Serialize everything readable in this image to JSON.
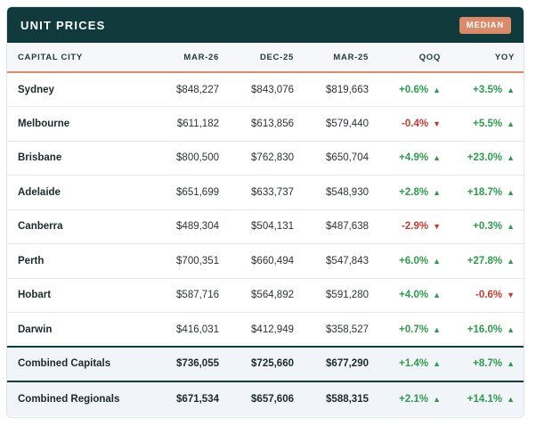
{
  "header": {
    "title": "UNIT PRICES",
    "badge": "MEDIAN"
  },
  "columns": [
    "CAPITAL CITY",
    "MAR-26",
    "DEC-25",
    "MAR-25",
    "QOQ",
    "YOY"
  ],
  "rows": [
    {
      "city": "Sydney",
      "mar26": "$848,227",
      "dec25": "$843,076",
      "mar25": "$819,663",
      "qoq": "+0.6%",
      "qoq_dir": "up",
      "yoy": "+3.5%",
      "yoy_dir": "up"
    },
    {
      "city": "Melbourne",
      "mar26": "$611,182",
      "dec25": "$613,856",
      "mar25": "$579,440",
      "qoq": "-0.4%",
      "qoq_dir": "down",
      "yoy": "+5.5%",
      "yoy_dir": "up"
    },
    {
      "city": "Brisbane",
      "mar26": "$800,500",
      "dec25": "$762,830",
      "mar25": "$650,704",
      "qoq": "+4.9%",
      "qoq_dir": "up",
      "yoy": "+23.0%",
      "yoy_dir": "up"
    },
    {
      "city": "Adelaide",
      "mar26": "$651,699",
      "dec25": "$633,737",
      "mar25": "$548,930",
      "qoq": "+2.8%",
      "qoq_dir": "up",
      "yoy": "+18.7%",
      "yoy_dir": "up"
    },
    {
      "city": "Canberra",
      "mar26": "$489,304",
      "dec25": "$504,131",
      "mar25": "$487,638",
      "qoq": "-2.9%",
      "qoq_dir": "down",
      "yoy": "+0.3%",
      "yoy_dir": "up"
    },
    {
      "city": "Perth",
      "mar26": "$700,351",
      "dec25": "$660,494",
      "mar25": "$547,843",
      "qoq": "+6.0%",
      "qoq_dir": "up",
      "yoy": "+27.8%",
      "yoy_dir": "up"
    },
    {
      "city": "Hobart",
      "mar26": "$587,716",
      "dec25": "$564,892",
      "mar25": "$591,280",
      "qoq": "+4.0%",
      "qoq_dir": "up",
      "yoy": "-0.6%",
      "yoy_dir": "down"
    },
    {
      "city": "Darwin",
      "mar26": "$416,031",
      "dec25": "$412,949",
      "mar25": "$358,527",
      "qoq": "+0.7%",
      "qoq_dir": "up",
      "yoy": "+16.0%",
      "yoy_dir": "up"
    }
  ],
  "totals": [
    {
      "city": "Combined Capitals",
      "mar26": "$736,055",
      "dec25": "$725,660",
      "mar25": "$677,290",
      "qoq": "+1.4%",
      "qoq_dir": "up",
      "yoy": "+8.7%",
      "yoy_dir": "up"
    },
    {
      "city": "Combined Regionals",
      "mar26": "$671,534",
      "dec25": "$657,606",
      "mar25": "$588,315",
      "qoq": "+2.1%",
      "qoq_dir": "up",
      "yoy": "+14.1%",
      "yoy_dir": "up"
    }
  ],
  "arrows": {
    "up": "▲",
    "down": "▼"
  },
  "colors": {
    "header_bg": "#103a3c",
    "badge_bg": "#d98a6a",
    "positive": "#2e9a4e",
    "negative": "#c23b30"
  }
}
